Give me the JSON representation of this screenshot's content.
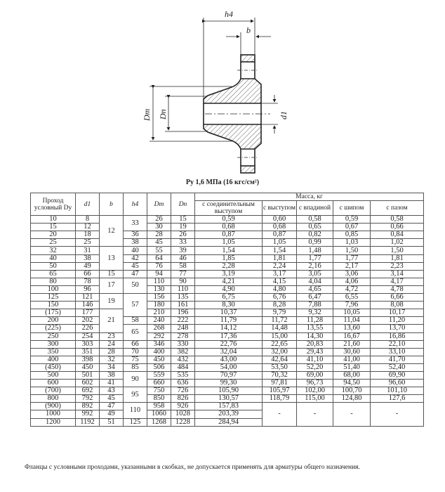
{
  "drawing": {
    "labels": {
      "h4": "h4",
      "b": "b",
      "Dm": "Dm",
      "Dn": "Dn",
      "d1": "d1"
    },
    "caption": "Pу 1,6 МПа (16 кгс/см²)"
  },
  "table": {
    "headers": {
      "dy": "Проход условный Dу",
      "d1": "d1",
      "b": "b",
      "h4": "h4",
      "Dm": "Dm",
      "Dn": "Dn",
      "mass_group": "Масса, кг",
      "mass_cols": [
        "с соединительным выступом",
        "с выступом",
        "с впадиной",
        "с шипом",
        "с пазом"
      ]
    },
    "dy": [
      "10",
      "15",
      "20",
      "25",
      "32",
      "40",
      "50",
      "65",
      "80",
      "100",
      "125",
      "150",
      "(175)",
      "200",
      "(225)",
      "250",
      "300",
      "350",
      "400",
      "(450)",
      "500",
      "600",
      "(700)",
      "800",
      "(900)",
      "1000",
      "1200"
    ],
    "d1": [
      "8",
      "12",
      "18",
      "25",
      "31",
      "38",
      "49",
      "66",
      "78",
      "96",
      "121",
      "146",
      "177",
      "202",
      "226",
      "254",
      "303",
      "351",
      "398",
      "450",
      "501",
      "602",
      "692",
      "792",
      "892",
      "992",
      "1192"
    ],
    "b_groups": [
      {
        "value": "12",
        "rows": 4
      },
      {
        "value": "13",
        "rows": 3
      },
      {
        "value": "15",
        "rows": 1
      },
      {
        "value": "17",
        "rows": 2
      },
      {
        "value": "19",
        "rows": 2
      },
      {
        "value": "21",
        "rows": 3
      },
      {
        "value": "23",
        "rows": 1
      },
      {
        "value": "24",
        "rows": 1
      },
      {
        "value": "28",
        "rows": 1
      },
      {
        "value": "32",
        "rows": 1
      },
      {
        "value": "34",
        "rows": 1
      },
      {
        "value": "38",
        "rows": 1
      },
      {
        "value": "41",
        "rows": 1
      },
      {
        "value": "43",
        "rows": 1
      },
      {
        "value": "45",
        "rows": 1
      },
      {
        "value": "47",
        "rows": 1
      },
      {
        "value": "49",
        "rows": 1
      },
      {
        "value": "51",
        "rows": 1
      }
    ],
    "h4_groups": [
      {
        "value": "33",
        "rows": 2
      },
      {
        "value": "36",
        "rows": 1
      },
      {
        "value": "38",
        "rows": 1
      },
      {
        "value": "40",
        "rows": 1
      },
      {
        "value": "42",
        "rows": 1
      },
      {
        "value": "45",
        "rows": 1
      },
      {
        "value": "47",
        "rows": 1
      },
      {
        "value": "50",
        "rows": 2
      },
      {
        "value": "57",
        "rows": 3
      },
      {
        "value": "58",
        "rows": 1
      },
      {
        "value": "65",
        "rows": 2
      },
      {
        "value": "66",
        "rows": 1
      },
      {
        "value": "70",
        "rows": 1
      },
      {
        "value": "75",
        "rows": 1
      },
      {
        "value": "85",
        "rows": 1
      },
      {
        "value": "90",
        "rows": 2
      },
      {
        "value": "95",
        "rows": 2
      },
      {
        "value": "110",
        "rows": 2
      },
      {
        "value": "125",
        "rows": 1
      }
    ],
    "Dm": [
      "26",
      "30",
      "28",
      "45",
      "55",
      "64",
      "76",
      "94",
      "110",
      "130",
      "156",
      "180",
      "210",
      "240",
      "268",
      "292",
      "346",
      "400",
      "450",
      "506",
      "559",
      "660",
      "750",
      "850",
      "958",
      "1060",
      "1268"
    ],
    "Dn": [
      "15",
      "19",
      "26",
      "33",
      "39",
      "46",
      "58",
      "77",
      "90",
      "110",
      "135",
      "161",
      "196",
      "222",
      "248",
      "278",
      "330",
      "382",
      "432",
      "484",
      "535",
      "636",
      "726",
      "826",
      "926",
      "1028",
      "1228"
    ],
    "mass": [
      [
        "0,59",
        "0,60",
        "0,58",
        "0,59",
        "0,58"
      ],
      [
        "0,68",
        "0,68",
        "0,65",
        "0,67",
        "0,66"
      ],
      [
        "0,87",
        "0,87",
        "0,82",
        "0,85",
        "0,84"
      ],
      [
        "1,05",
        "1,05",
        "0,99",
        "1,03",
        "1,02"
      ],
      [
        "1,54",
        "1,54",
        "1,48",
        "1,50",
        "1,50"
      ],
      [
        "1,85",
        "1,81",
        "1,77",
        "1,77",
        "1,81"
      ],
      [
        "2,28",
        "2,24",
        "2,16",
        "2,17",
        "2,23"
      ],
      [
        "3,19",
        "3,17",
        "3,05",
        "3,06",
        "3,14"
      ],
      [
        "4,21",
        "4,15",
        "4,04",
        "4,06",
        "4,17"
      ],
      [
        "4,90",
        "4,80",
        "4,65",
        "4,72",
        "4,78"
      ],
      [
        "6,75",
        "6,76",
        "6,47",
        "6,55",
        "6,66"
      ],
      [
        "8,30",
        "8,28",
        "7,88",
        "7,96",
        "8,08"
      ],
      [
        "10,37",
        "9,79",
        "9,32",
        "10,05",
        "10,17"
      ],
      [
        "11,79",
        "11,72",
        "11,28",
        "11,04",
        "11,20"
      ],
      [
        "14,12",
        "14,48",
        "13,55",
        "13,60",
        "13,70"
      ],
      [
        "17,36",
        "15,00",
        "14,30",
        "16,67",
        "16,86"
      ],
      [
        "22,76",
        "22,65",
        "20,83",
        "21,60",
        "22,10"
      ],
      [
        "32,04",
        "32,00",
        "29,43",
        "30,60",
        "33,10"
      ],
      [
        "43,00",
        "42,64",
        "41,10",
        "41,00",
        "41,70"
      ],
      [
        "54,00",
        "53,50",
        "52,20",
        "51,40",
        "52,40"
      ],
      [
        "70,97",
        "70,32",
        "69,00",
        "68,00",
        "69,90"
      ],
      [
        "99,30",
        "97,81",
        "96,73",
        "94,50",
        "96,60"
      ],
      [
        "105,90",
        "105,97",
        "102,00",
        "100,70",
        "101,10"
      ],
      [
        "130,57",
        "118,79",
        "115,00",
        "124,80",
        "127,6"
      ],
      [
        "157,83"
      ],
      [
        "203,39"
      ],
      [
        "284,94"
      ]
    ],
    "empty_mark": "-"
  },
  "footnote": "Фланцы с условными проходами, указанными в скобках, не допускается применять для арматуры общего назначения."
}
